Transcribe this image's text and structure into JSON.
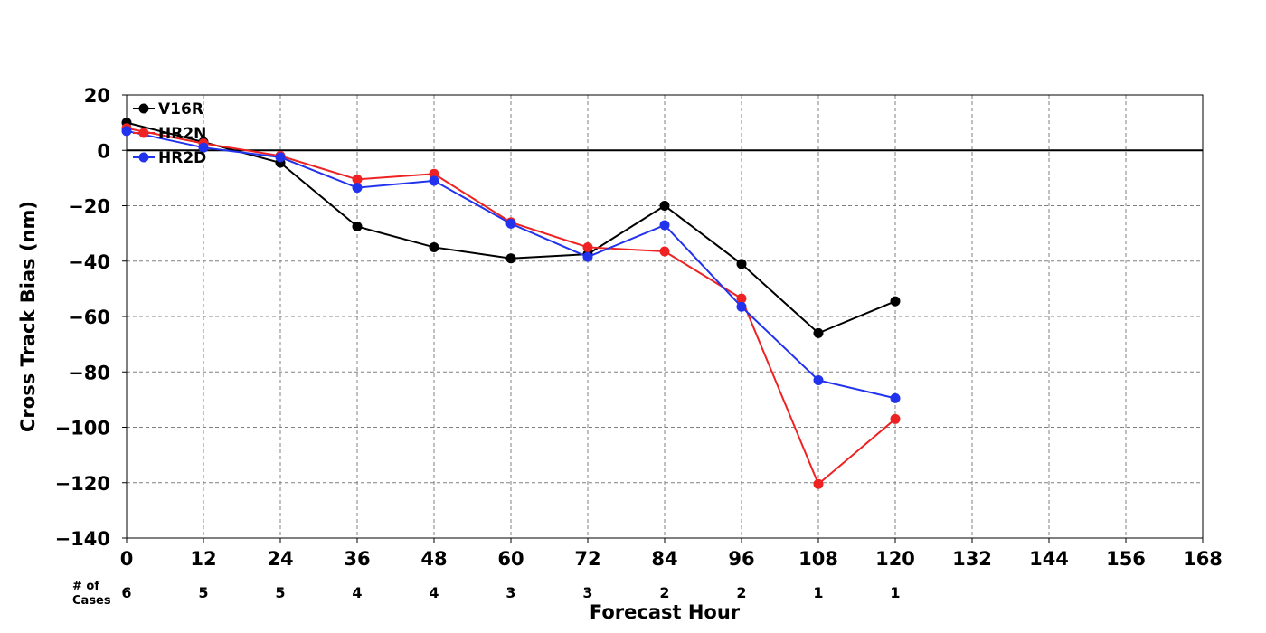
{
  "chart_data": {
    "type": "line",
    "title": "",
    "xlabel": "Forecast Hour",
    "ylabel": "Cross Track Bias (nm)",
    "xlim": [
      0,
      168
    ],
    "ylim": [
      -140,
      20
    ],
    "xticks": [
      0,
      12,
      24,
      36,
      48,
      60,
      72,
      84,
      96,
      108,
      120,
      132,
      144,
      156,
      168
    ],
    "yticks": [
      20,
      0,
      -20,
      -40,
      -60,
      -80,
      -100,
      -120,
      -140
    ],
    "grid": true,
    "legend_position": "top-left",
    "cases_label": "# of\nCases",
    "cases_label_lines": [
      "# of",
      "Cases"
    ],
    "cases": [
      {
        "x": 0,
        "n": "6"
      },
      {
        "x": 12,
        "n": "5"
      },
      {
        "x": 24,
        "n": "5"
      },
      {
        "x": 36,
        "n": "4"
      },
      {
        "x": 48,
        "n": "4"
      },
      {
        "x": 60,
        "n": "3"
      },
      {
        "x": 72,
        "n": "3"
      },
      {
        "x": 84,
        "n": "2"
      },
      {
        "x": 96,
        "n": "2"
      },
      {
        "x": 108,
        "n": "1"
      },
      {
        "x": 120,
        "n": "1"
      }
    ],
    "x": [
      0,
      12,
      24,
      36,
      48,
      60,
      72,
      84,
      96,
      108,
      120
    ],
    "series": [
      {
        "name": "V16R",
        "color": "#000000",
        "values": [
          10,
          3,
          -4.5,
          -27.5,
          -35,
          -39,
          -37.5,
          -20,
          -41,
          -66,
          -54.5
        ]
      },
      {
        "name": "HR2N",
        "color": "#ee2222",
        "values": [
          8,
          2.5,
          -2,
          -10.5,
          -8.5,
          -26,
          -35,
          -36.5,
          -53.5,
          -120.5,
          -97
        ]
      },
      {
        "name": "HR2D",
        "color": "#2233ee",
        "values": [
          7,
          1,
          -2.5,
          -13.5,
          -11,
          -26.5,
          -38.5,
          -27,
          -56.5,
          -83,
          -89.5
        ]
      }
    ]
  }
}
